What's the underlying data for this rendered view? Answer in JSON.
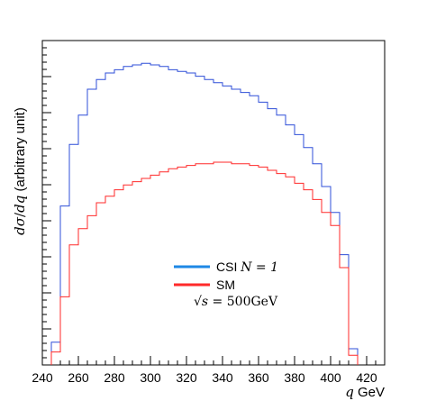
{
  "chart_data": {
    "type": "line",
    "title": "",
    "xlabel_var": "q",
    "xlabel_unit": "GeV",
    "ylabel": {
      "d1": "d",
      "sigma": "σ",
      "slash": "/",
      "d2": "d",
      "q": "q",
      "suffix": " (arbitrary unit)"
    },
    "xlim": [
      240,
      430
    ],
    "ylim": [
      0,
      1.0
    ],
    "x_ticks": [
      240,
      260,
      280,
      300,
      320,
      340,
      360,
      380,
      400,
      420
    ],
    "grid": false,
    "legend_position": "center",
    "bin_edges": [
      245,
      250,
      255,
      260,
      265,
      270,
      275,
      280,
      285,
      290,
      295,
      300,
      305,
      310,
      315,
      320,
      325,
      330,
      335,
      340,
      345,
      350,
      355,
      360,
      365,
      370,
      375,
      380,
      385,
      390,
      395,
      400,
      405,
      410,
      415
    ],
    "series": [
      {
        "name": "CSI",
        "label_math": "N = 1",
        "color": "#2f4fd8",
        "legend_color": "#1e88e5",
        "values": [
          0.07,
          0.49,
          0.68,
          0.77,
          0.85,
          0.88,
          0.9,
          0.91,
          0.92,
          0.925,
          0.93,
          0.925,
          0.92,
          0.91,
          0.905,
          0.9,
          0.89,
          0.88,
          0.87,
          0.86,
          0.85,
          0.84,
          0.83,
          0.81,
          0.79,
          0.77,
          0.74,
          0.71,
          0.67,
          0.62,
          0.55,
          0.47,
          0.34,
          0.05
        ]
      },
      {
        "name": "SM",
        "label_math": "",
        "color": "#ff2a2a",
        "legend_color": "#ff2a2a",
        "values": [
          0.04,
          0.21,
          0.37,
          0.42,
          0.46,
          0.5,
          0.52,
          0.54,
          0.555,
          0.565,
          0.575,
          0.585,
          0.595,
          0.605,
          0.61,
          0.615,
          0.62,
          0.62,
          0.625,
          0.625,
          0.62,
          0.62,
          0.615,
          0.61,
          0.6,
          0.59,
          0.58,
          0.56,
          0.54,
          0.51,
          0.47,
          0.43,
          0.3,
          0.03
        ]
      }
    ],
    "annotation": {
      "root": "√",
      "s": "s",
      "equals": " = ",
      "value": "500GeV"
    }
  }
}
